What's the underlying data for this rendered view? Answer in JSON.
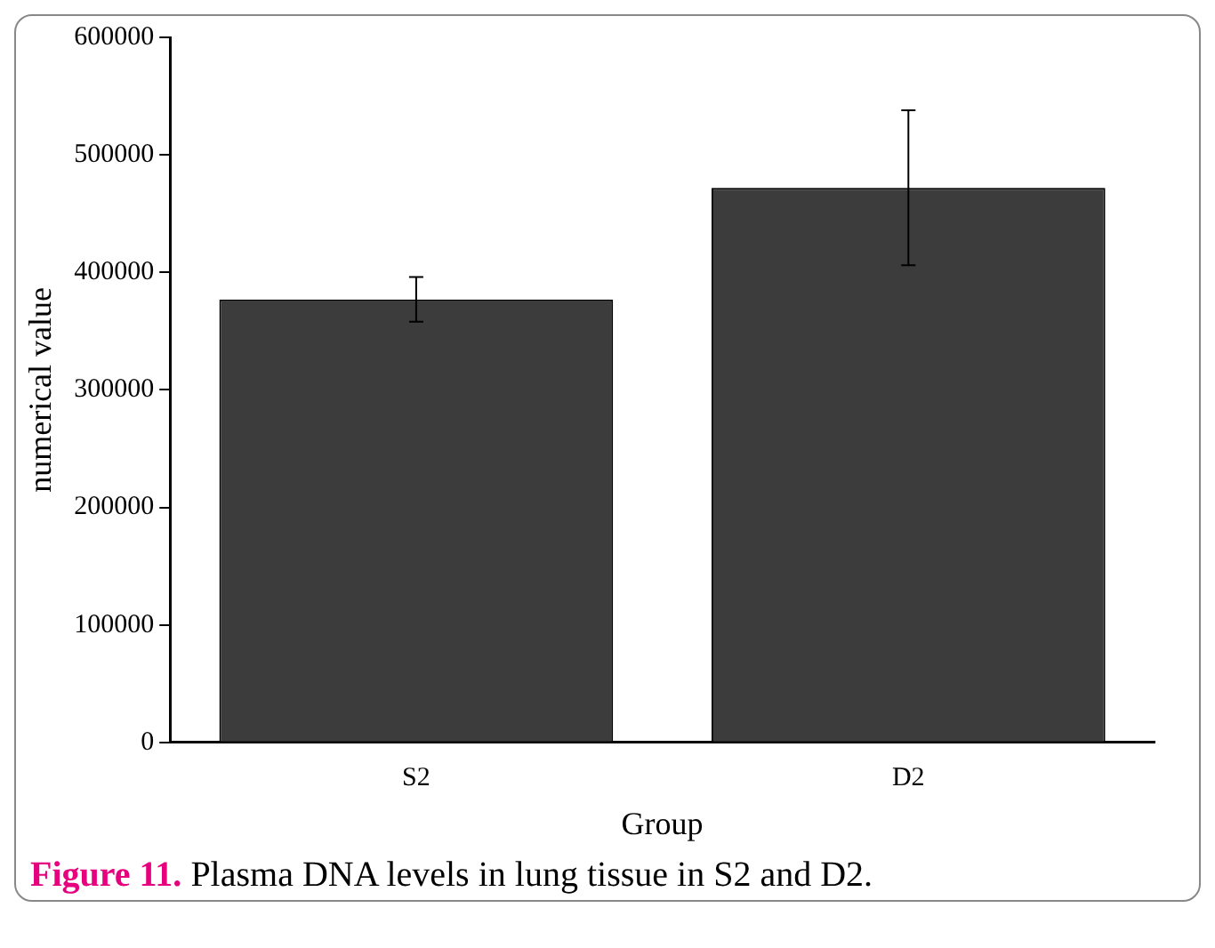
{
  "chart_data": {
    "type": "bar",
    "categories": [
      "S2",
      "D2"
    ],
    "values": [
      377000,
      472000
    ],
    "errors": [
      [
        358000,
        396000
      ],
      [
        406000,
        538000
      ]
    ],
    "color": "#3c3c3c",
    "xlabel": "Group",
    "ylabel": "numerical value",
    "ylim": [
      0,
      600000
    ],
    "yticks": [
      0,
      100000,
      200000,
      300000,
      400000,
      500000,
      600000
    ],
    "grid": false,
    "legend": false,
    "annotations": [
      "Figure 11.",
      "Plasma DNA levels in lung tissue in S2 and D2."
    ]
  }
}
